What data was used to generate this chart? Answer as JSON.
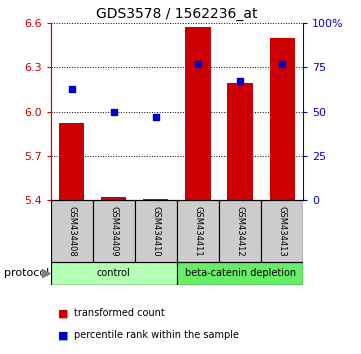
{
  "title": "GDS3578 / 1562236_at",
  "samples": [
    "GSM434408",
    "GSM434409",
    "GSM434410",
    "GSM434411",
    "GSM434412",
    "GSM434413"
  ],
  "red_values": [
    5.92,
    5.42,
    5.41,
    6.57,
    6.19,
    6.5
  ],
  "blue_values": [
    63,
    50,
    47,
    77,
    67,
    77
  ],
  "baseline": 5.4,
  "ylim_left": [
    5.4,
    6.6
  ],
  "ylim_right": [
    0,
    100
  ],
  "yticks_left": [
    5.4,
    5.7,
    6.0,
    6.3,
    6.6
  ],
  "yticks_right": [
    0,
    25,
    50,
    75,
    100
  ],
  "ytick_labels_right": [
    "0",
    "25",
    "50",
    "75",
    "100%"
  ],
  "groups": [
    {
      "label": "control",
      "start": 0,
      "end": 2,
      "color": "#b3ffb3"
    },
    {
      "label": "beta-catenin depletion",
      "start": 3,
      "end": 5,
      "color": "#66ee66"
    }
  ],
  "protocol_label": "protocol",
  "red_color": "#cc0000",
  "blue_color": "#0000cc",
  "bar_width": 0.6,
  "legend_red": "transformed count",
  "legend_blue": "percentile rank within the sample",
  "sample_bg": "#cccccc"
}
